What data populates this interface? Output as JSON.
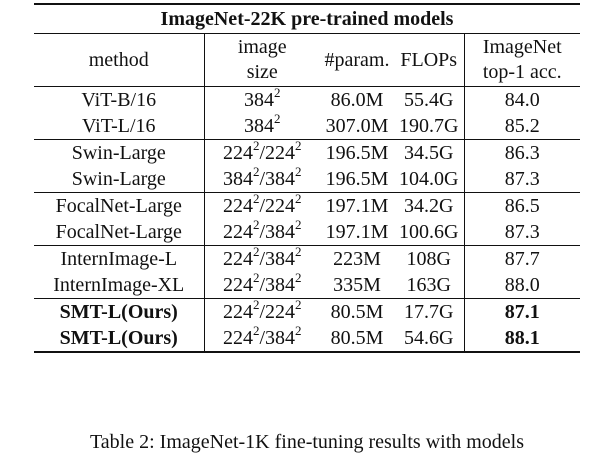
{
  "table": {
    "title": "ImageNet-22K pre-trained models",
    "headers": {
      "method": "method",
      "image_size_line1": "image",
      "image_size_line2": "size",
      "params": "#param.",
      "flops": "FLOPs",
      "acc_line1": "ImageNet",
      "acc_line2": "top-1 acc."
    },
    "rows": [
      {
        "method": "ViT-B/16",
        "size_a": "384",
        "size_b": "",
        "params": "86.0M",
        "flops": "55.4G",
        "acc": "84.0"
      },
      {
        "method": "ViT-L/16",
        "size_a": "384",
        "size_b": "",
        "params": "307.0M",
        "flops": "190.7G",
        "acc": "85.2"
      },
      {
        "method": "Swin-Large",
        "size_a": "224",
        "size_b": "224",
        "params": "196.5M",
        "flops": "34.5G",
        "acc": "86.3"
      },
      {
        "method": "Swin-Large",
        "size_a": "384",
        "size_b": "384",
        "params": "196.5M",
        "flops": "104.0G",
        "acc": "87.3"
      },
      {
        "method": "FocalNet-Large",
        "size_a": "224",
        "size_b": "224",
        "params": "197.1M",
        "flops": "34.2G",
        "acc": "86.5"
      },
      {
        "method": "FocalNet-Large",
        "size_a": "224",
        "size_b": "384",
        "params": "197.1M",
        "flops": "100.6G",
        "acc": "87.3"
      },
      {
        "method": "InternImage-L",
        "size_a": "224",
        "size_b": "384",
        "params": "223M",
        "flops": "108G",
        "acc": "87.7"
      },
      {
        "method": "InternImage-XL",
        "size_a": "224",
        "size_b": "384",
        "params": "335M",
        "flops": "163G",
        "acc": "88.0"
      },
      {
        "method": "SMT-L(Ours)",
        "size_a": "224",
        "size_b": "224",
        "params": "80.5M",
        "flops": "17.7G",
        "acc": "87.1"
      },
      {
        "method": "SMT-L(Ours)",
        "size_a": "224",
        "size_b": "384",
        "params": "80.5M",
        "flops": "54.6G",
        "acc": "88.1"
      }
    ],
    "superscript": "2",
    "slash": "/"
  },
  "caption": "Table 2: ImageNet-1K fine-tuning results with models"
}
